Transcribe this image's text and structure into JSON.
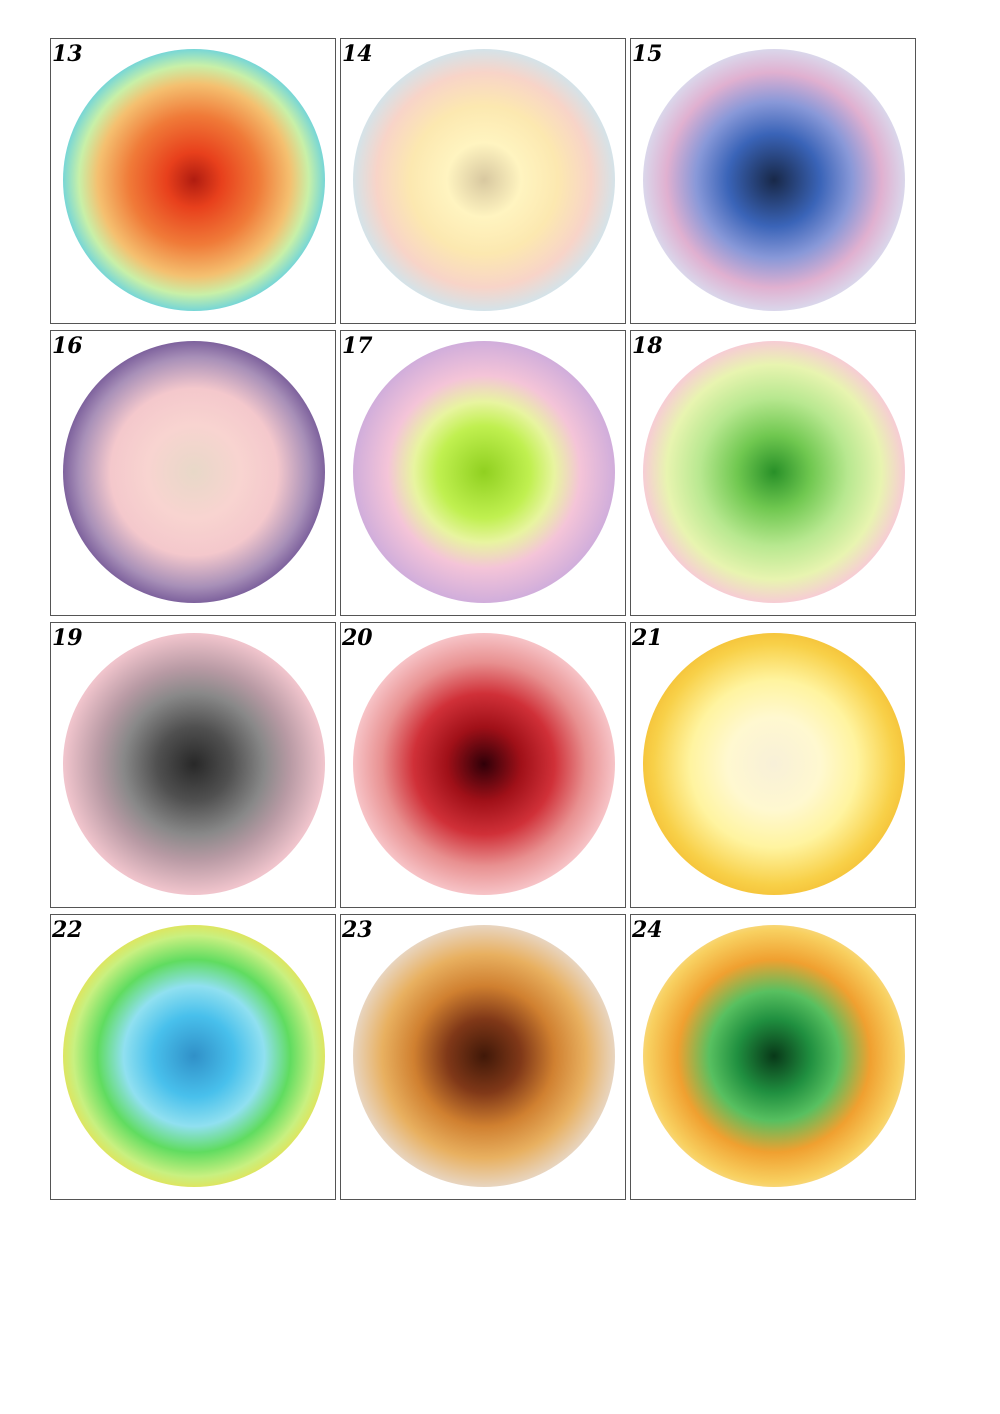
{
  "cells": [
    {
      "label": "13"
    },
    {
      "label": "14"
    },
    {
      "label": "15"
    },
    {
      "label": "16"
    },
    {
      "label": "17"
    },
    {
      "label": "18"
    },
    {
      "label": "19"
    },
    {
      "label": "20"
    },
    {
      "label": "21"
    },
    {
      "label": "22"
    },
    {
      "label": "23"
    },
    {
      "label": "24"
    }
  ]
}
